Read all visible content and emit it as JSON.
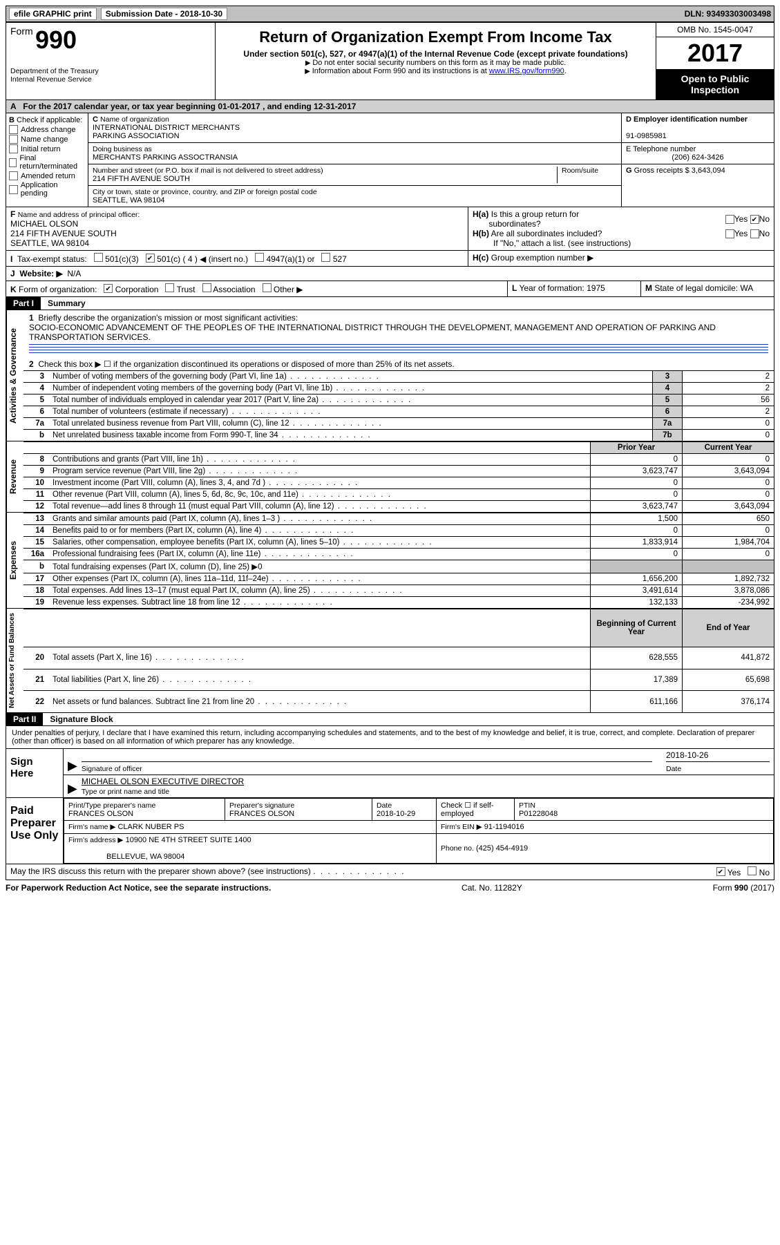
{
  "top": {
    "efile": "efile GRAPHIC print",
    "submission_label": "Submission Date - 2018-10-30",
    "dln_label": "DLN: 93493303003498"
  },
  "header": {
    "form_word": "Form",
    "form_num": "990",
    "dept": "Department of the Treasury",
    "irs": "Internal Revenue Service",
    "title": "Return of Organization Exempt From Income Tax",
    "subtitle": "Under section 501(c), 527, or 4947(a)(1) of the Internal Revenue Code (except private foundations)",
    "note1": "Do not enter social security numbers on this form as it may be made public.",
    "note2_pre": "Information about Form 990 and its instructions is at ",
    "note2_link": "www.IRS.gov/form990",
    "omb": "OMB No. 1545-0047",
    "year": "2017",
    "open1": "Open to Public",
    "open2": "Inspection"
  },
  "A": {
    "text": "For the 2017 calendar year, or tax year beginning 01-01-2017   , and ending 12-31-2017"
  },
  "B": {
    "label": "Check if applicable:",
    "items": [
      "Address change",
      "Name change",
      "Initial return",
      "Final return/terminated",
      "Amended return",
      "Application pending"
    ]
  },
  "C": {
    "name_label": "Name of organization",
    "name1": "INTERNATIONAL DISTRICT MERCHANTS",
    "name2": "PARKING ASSOCIATION",
    "dba_label": "Doing business as",
    "dba": "MERCHANTS PARKING ASSOCTRANSIA",
    "street_label": "Number and street (or P.O. box if mail is not delivered to street address)",
    "room_label": "Room/suite",
    "street": "214 FIFTH AVENUE SOUTH",
    "city_label": "City or town, state or province, country, and ZIP or foreign postal code",
    "city": "SEATTLE, WA  98104"
  },
  "D": {
    "label": "Employer identification number",
    "value": "91-0985981"
  },
  "E": {
    "label": "E Telephone number",
    "value": "(206) 624-3426"
  },
  "G": {
    "label": "Gross receipts $",
    "value": "3,643,094"
  },
  "F": {
    "label": "Name and address of principal officer:",
    "name": "MICHAEL OLSON",
    "addr1": "214 FIFTH AVENUE SOUTH",
    "addr2": "SEATTLE, WA  98104"
  },
  "H": {
    "a": "Is this a group return for",
    "a2": "subordinates?",
    "b": "Are all subordinates included?",
    "ifno": "If \"No,\" attach a list. (see instructions)",
    "c": "Group exemption number ▶",
    "yes": "Yes",
    "no": "No"
  },
  "I": {
    "label": "Tax-exempt status:",
    "opts": [
      "501(c)(3)",
      "501(c) ( 4 ) ◀ (insert no.)",
      "4947(a)(1) or",
      "527"
    ]
  },
  "J": {
    "label": "Website: ▶",
    "value": "N/A"
  },
  "K": {
    "label": "Form of organization:",
    "opts": [
      "Corporation",
      "Trust",
      "Association",
      "Other ▶"
    ]
  },
  "L": {
    "label": "Year of formation:",
    "value": "1975"
  },
  "M": {
    "label": "State of legal domicile:",
    "value": "WA"
  },
  "partI": {
    "label": "Part I",
    "title": "Summary"
  },
  "s1": {
    "q": "Briefly describe the organization's mission or most significant activities:",
    "a": "SOCIO-ECONOMIC ADVANCEMENT OF THE PEOPLES OF THE INTERNATIONAL DISTRICT THROUGH THE DEVELOPMENT, MANAGEMENT AND OPERATION OF PARKING AND TRANSPORTATION SERVICES."
  },
  "s2": "Check this box ▶ ☐  if the organization discontinued its operations or disposed of more than 25% of its net assets.",
  "lines_ag": [
    {
      "n": "3",
      "t": "Number of voting members of the governing body (Part VI, line 1a)",
      "box": "3",
      "v": "2"
    },
    {
      "n": "4",
      "t": "Number of independent voting members of the governing body (Part VI, line 1b)",
      "box": "4",
      "v": "2"
    },
    {
      "n": "5",
      "t": "Total number of individuals employed in calendar year 2017 (Part V, line 2a)",
      "box": "5",
      "v": "56"
    },
    {
      "n": "6",
      "t": "Total number of volunteers (estimate if necessary)",
      "box": "6",
      "v": "2"
    },
    {
      "n": "7a",
      "t": "Total unrelated business revenue from Part VIII, column (C), line 12",
      "box": "7a",
      "v": "0"
    },
    {
      "n": "b",
      "t": "Net unrelated business taxable income from Form 990-T, line 34",
      "box": "7b",
      "v": "0"
    }
  ],
  "col_heads": {
    "prior": "Prior Year",
    "current": "Current Year",
    "begin": "Beginning of Current Year",
    "end": "End of Year"
  },
  "rev": [
    {
      "n": "8",
      "t": "Contributions and grants (Part VIII, line 1h)",
      "p": "0",
      "c": "0"
    },
    {
      "n": "9",
      "t": "Program service revenue (Part VIII, line 2g)",
      "p": "3,623,747",
      "c": "3,643,094"
    },
    {
      "n": "10",
      "t": "Investment income (Part VIII, column (A), lines 3, 4, and 7d )",
      "p": "0",
      "c": "0"
    },
    {
      "n": "11",
      "t": "Other revenue (Part VIII, column (A), lines 5, 6d, 8c, 9c, 10c, and 11e)",
      "p": "0",
      "c": "0"
    },
    {
      "n": "12",
      "t": "Total revenue—add lines 8 through 11 (must equal Part VIII, column (A), line 12)",
      "p": "3,623,747",
      "c": "3,643,094"
    }
  ],
  "exp": [
    {
      "n": "13",
      "t": "Grants and similar amounts paid (Part IX, column (A), lines 1–3 )",
      "p": "1,500",
      "c": "650"
    },
    {
      "n": "14",
      "t": "Benefits paid to or for members (Part IX, column (A), line 4)",
      "p": "0",
      "c": "0"
    },
    {
      "n": "15",
      "t": "Salaries, other compensation, employee benefits (Part IX, column (A), lines 5–10)",
      "p": "1,833,914",
      "c": "1,984,704"
    },
    {
      "n": "16a",
      "t": "Professional fundraising fees (Part IX, column (A), line 11e)",
      "p": "0",
      "c": "0"
    }
  ],
  "exp_b": "Total fundraising expenses (Part IX, column (D), line 25) ▶0",
  "exp2": [
    {
      "n": "17",
      "t": "Other expenses (Part IX, column (A), lines 11a–11d, 11f–24e)",
      "p": "1,656,200",
      "c": "1,892,732"
    },
    {
      "n": "18",
      "t": "Total expenses. Add lines 13–17 (must equal Part IX, column (A), line 25)",
      "p": "3,491,614",
      "c": "3,878,086"
    },
    {
      "n": "19",
      "t": "Revenue less expenses. Subtract line 18 from line 12",
      "p": "132,133",
      "c": "-234,992"
    }
  ],
  "na": [
    {
      "n": "20",
      "t": "Total assets (Part X, line 16)",
      "p": "628,555",
      "c": "441,872"
    },
    {
      "n": "21",
      "t": "Total liabilities (Part X, line 26)",
      "p": "17,389",
      "c": "65,698"
    },
    {
      "n": "22",
      "t": "Net assets or fund balances. Subtract line 21 from line 20",
      "p": "611,166",
      "c": "376,174"
    }
  ],
  "vlabels": {
    "ag": "Activities & Governance",
    "rev": "Revenue",
    "exp": "Expenses",
    "na": "Net Assets or\nFund Balances"
  },
  "partII": {
    "label": "Part II",
    "title": "Signature Block"
  },
  "penalties": "Under penalties of perjury, I declare that I have examined this return, including accompanying schedules and statements, and to the best of my knowledge and belief, it is true, correct, and complete. Declaration of preparer (other than officer) is based on all information of which preparer has any knowledge.",
  "sign": {
    "here": "Sign Here",
    "sig_label": "Signature of officer",
    "date_label": "Date",
    "date": "2018-10-26",
    "name": "MICHAEL OLSON  EXECUTIVE DIRECTOR",
    "name_label": "Type or print name and title"
  },
  "paid": {
    "title": "Paid Preparer Use Only",
    "pt_name_label": "Print/Type preparer's name",
    "pt_name": "FRANCES OLSON",
    "pt_sig_label": "Preparer's signature",
    "pt_sig": "FRANCES OLSON",
    "date_label": "Date",
    "date": "2018-10-29",
    "check_label": "Check ☐ if self-employed",
    "ptin_label": "PTIN",
    "ptin": "P01228048",
    "firm_name_label": "Firm's name    ▶",
    "firm_name": "CLARK NUBER PS",
    "firm_ein_label": "Firm's EIN ▶",
    "firm_ein": "91-1194016",
    "firm_addr_label": "Firm's address ▶",
    "firm_addr1": "10900 NE 4TH STREET SUITE 1400",
    "firm_addr2": "BELLEVUE, WA  98004",
    "phone_label": "Phone no.",
    "phone": "(425) 454-4919"
  },
  "discuss": {
    "q": "May the IRS discuss this return with the preparer shown above? (see instructions)",
    "yes": "Yes",
    "no": "No"
  },
  "footer": {
    "left": "For Paperwork Reduction Act Notice, see the separate instructions.",
    "mid": "Cat. No. 11282Y",
    "right_pre": "Form ",
    "right_form": "990",
    "right_post": " (2017)"
  }
}
